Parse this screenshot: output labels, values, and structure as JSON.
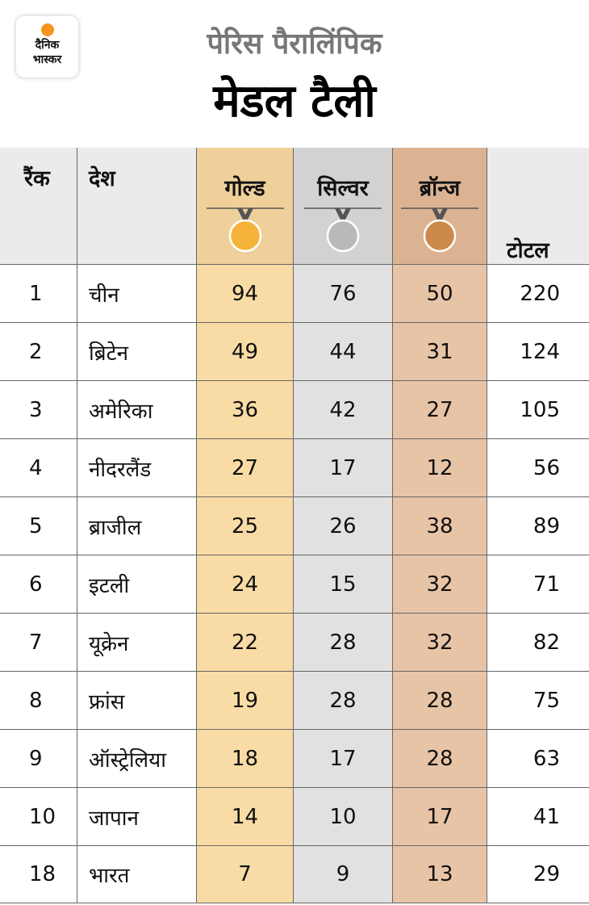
{
  "header": {
    "logo": [
      "दैनिक",
      "भास्कर"
    ],
    "subtitle": "पेरिस पैरालिंपिक",
    "title": "मेडल टैली"
  },
  "table": {
    "columns": [
      "रैंक",
      "देश",
      "गोल्ड",
      "सिल्वर",
      "ब्रॉन्ज",
      "टोटल"
    ],
    "rows": [
      [
        1,
        "चीन",
        94,
        76,
        50,
        220
      ],
      [
        2,
        "ब्रिटेन",
        49,
        44,
        31,
        124
      ],
      [
        3,
        "अमेरिका",
        36,
        42,
        27,
        105
      ],
      [
        4,
        "नीदरलैंड",
        27,
        17,
        12,
        56
      ],
      [
        5,
        "ब्राजील",
        25,
        26,
        38,
        89
      ],
      [
        6,
        "इटली",
        24,
        15,
        32,
        71
      ],
      [
        7,
        "यूक्रेन",
        22,
        28,
        32,
        82
      ],
      [
        8,
        "फ्रांस",
        19,
        28,
        28,
        75
      ],
      [
        9,
        "ऑस्ट्रेलिया",
        18,
        17,
        28,
        63
      ],
      [
        10,
        "जापान",
        14,
        10,
        17,
        41
      ],
      [
        18,
        "भारत",
        7,
        9,
        13,
        29
      ]
    ]
  }
}
